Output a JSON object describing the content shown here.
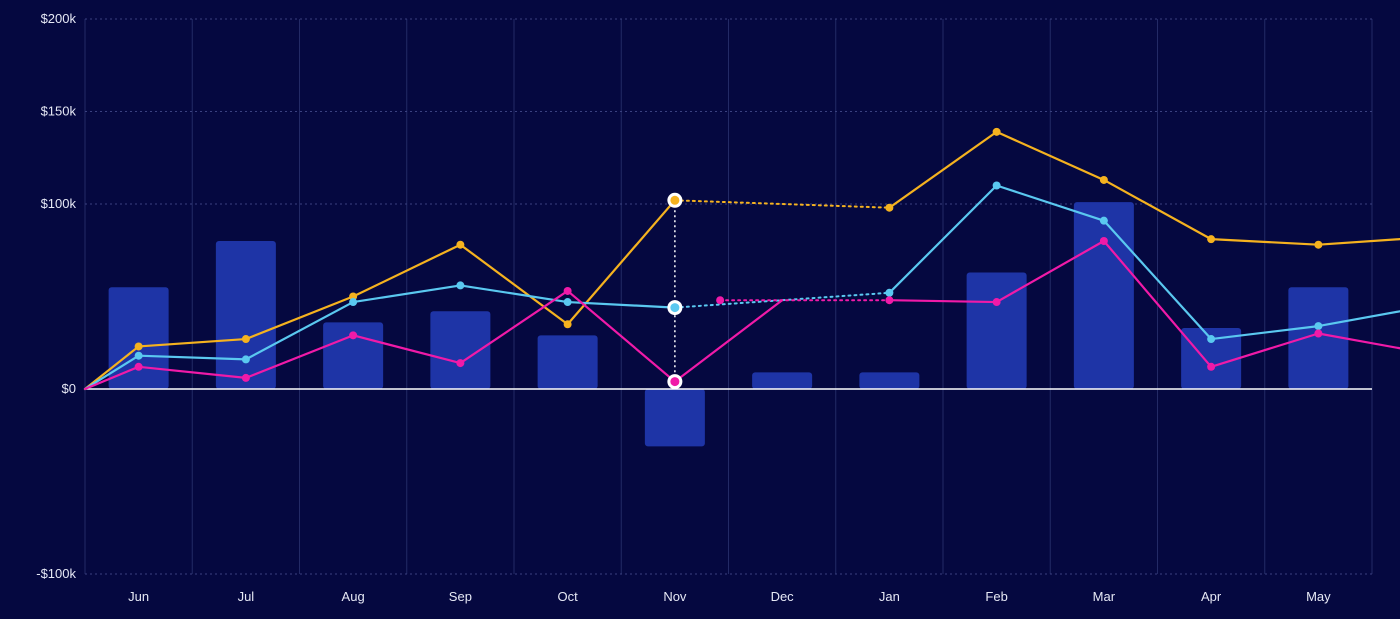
{
  "chart_data": {
    "type": "bar",
    "categories": [
      "Jun",
      "Jul",
      "Aug",
      "Sep",
      "Oct",
      "Nov",
      "Dec",
      "Jan",
      "Feb",
      "Mar",
      "Apr",
      "May"
    ],
    "title": "",
    "xlabel": "",
    "ylabel": "",
    "ylim": [
      -100000,
      200000
    ],
    "yticks": [
      {
        "value": 200000,
        "label": "$200k"
      },
      {
        "value": 150000,
        "label": "$150k"
      },
      {
        "value": 100000,
        "label": "$100k"
      },
      {
        "value": 0,
        "label": "$0"
      },
      {
        "value": -100000,
        "label": "-$100k"
      }
    ],
    "grid": true,
    "bars": {
      "color": "#1e34a6",
      "values": [
        55000,
        80000,
        36000,
        42000,
        29000,
        -31000,
        9000,
        9000,
        63000,
        101000,
        33000,
        55000
      ]
    },
    "series": [
      {
        "type": "line",
        "color": "#f5b21f",
        "x": [
          "Jun",
          "Jul",
          "Aug",
          "Sep",
          "Oct",
          "Nov",
          "Dec",
          "Jan",
          "Feb",
          "Mar",
          "Apr",
          "May"
        ],
        "values": [
          23000,
          27000,
          50000,
          78000,
          35000,
          102000,
          null,
          98000,
          139000,
          113000,
          81000,
          78000
        ],
        "dashed_after": "Nov",
        "start_value": 0,
        "end_value": 81000
      },
      {
        "type": "line",
        "color": "#5ac8f0",
        "x": [
          "Jun",
          "Jul",
          "Aug",
          "Sep",
          "Oct",
          "Nov",
          "Dec",
          "Jan",
          "Feb",
          "Mar",
          "Apr",
          "May"
        ],
        "values": [
          18000,
          16000,
          47000,
          56000,
          47000,
          44000,
          null,
          52000,
          110000,
          91000,
          27000,
          34000
        ],
        "dashed_after": "Nov",
        "start_value": 0,
        "end_value": 42000
      },
      {
        "type": "line",
        "color": "#f01aa8",
        "x": [
          "Jun",
          "Jul",
          "Aug",
          "Sep",
          "Oct",
          "Nov",
          "Dec",
          "Jan",
          "Feb",
          "Mar",
          "Apr",
          "May"
        ],
        "values": [
          12000,
          6000,
          29000,
          14000,
          53000,
          4000,
          48000,
          48000,
          47000,
          80000,
          12000,
          30000
        ],
        "dashed_segment": [
          "Dec",
          "Jan"
        ],
        "start_value": 0,
        "end_value": 22000
      }
    ],
    "highlight": {
      "category": "Nov"
    }
  }
}
